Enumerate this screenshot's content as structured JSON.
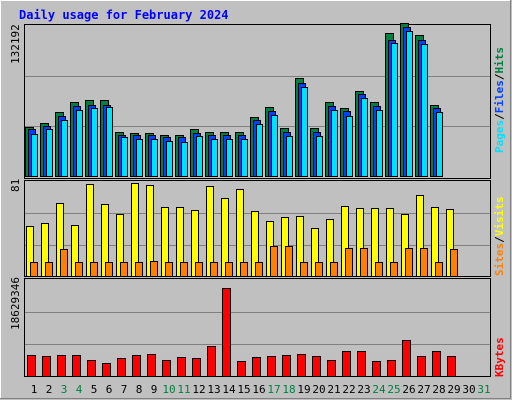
{
  "chart_data": {
    "type": "bar",
    "title": "Daily usage for February 2024",
    "categories": [
      "1",
      "2",
      "3",
      "4",
      "5",
      "6",
      "7",
      "8",
      "9",
      "10",
      "11",
      "12",
      "13",
      "14",
      "15",
      "16",
      "17",
      "18",
      "19",
      "20",
      "21",
      "22",
      "23",
      "24",
      "25",
      "26",
      "27",
      "28",
      "29",
      "30",
      "31"
    ],
    "weekend_days": [
      "3",
      "4",
      "10",
      "11",
      "17",
      "18",
      "24",
      "25",
      "31"
    ],
    "panels": [
      {
        "name": "hits_files_pages",
        "axis_max_label": "132192",
        "ylim": [
          0,
          132192
        ],
        "series": [
          {
            "name": "Hits",
            "color": "#008040",
            "values": [
              43000,
              47000,
              56000,
              65000,
              67000,
              67000,
              39000,
              38000,
              38000,
              36000,
              36000,
              41000,
              39000,
              39000,
              39000,
              52000,
              61000,
              42000,
              86000,
              42000,
              65000,
              60000,
              75000,
              65000,
              126000,
              135000,
              124000,
              63000,
              null,
              null,
              null
            ]
          },
          {
            "name": "Files",
            "color": "#0040ff",
            "values": [
              41000,
              44000,
              53000,
              62000,
              63000,
              63000,
              36000,
              36000,
              36000,
              34000,
              34000,
              38000,
              36000,
              36000,
              36000,
              49000,
              57000,
              39000,
              82000,
              39000,
              62000,
              57000,
              72000,
              62000,
              120000,
              131000,
              120000,
              60000,
              null,
              null,
              null
            ]
          },
          {
            "name": "Pages",
            "color": "#00e0ff",
            "values": [
              37000,
              41000,
              49000,
              58000,
              60000,
              61000,
              34000,
              33000,
              33000,
              31000,
              30000,
              35000,
              33000,
              33000,
              33000,
              46000,
              54000,
              35000,
              78000,
              35000,
              58000,
              53000,
              69000,
              58000,
              117000,
              128000,
              116000,
              56000,
              null,
              null,
              null
            ]
          }
        ]
      },
      {
        "name": "visits_sites",
        "axis_max_label": "81",
        "ylim": [
          0,
          81
        ],
        "series": [
          {
            "name": "Visits",
            "color": "#ffff00",
            "values": [
              44,
              47,
              64,
              45,
              81,
              63,
              55,
              82,
              80,
              61,
              61,
              58,
              79,
              69,
              77,
              57,
              48,
              52,
              53,
              42,
              50,
              62,
              60,
              60,
              60,
              55,
              71,
              61,
              59,
              null,
              null
            ]
          },
          {
            "name": "Sites",
            "color": "#ff8000",
            "values": [
              12,
              12,
              24,
              12,
              12,
              12,
              12,
              12,
              13,
              12,
              12,
              12,
              12,
              12,
              12,
              12,
              26,
              26,
              12,
              12,
              12,
              25,
              25,
              12,
              12,
              25,
              25,
              12,
              24,
              null,
              null
            ]
          }
        ]
      },
      {
        "name": "kbytes",
        "axis_max_label": "18629346",
        "ylim": [
          0,
          18629346
        ],
        "series": [
          {
            "name": "KBytes",
            "color": "#ff0000",
            "values": [
              4200000,
              4000000,
              4200000,
              4200000,
              3100000,
              2600000,
              3500000,
              4200000,
              4400000,
              3200000,
              3800000,
              3500000,
              5900000,
              17400000,
              2900000,
              3800000,
              3900000,
              4200000,
              4400000,
              4000000,
              3100000,
              5000000,
              4900000,
              2900000,
              3100000,
              7200000,
              3900000,
              5000000,
              3900000,
              null,
              null
            ]
          }
        ]
      }
    ],
    "legend": {
      "top": [
        "Pages",
        "/",
        "Files",
        "/",
        "Hits"
      ],
      "middle": [
        "Sites",
        "/",
        "Visits"
      ],
      "bottom": [
        "KBytes"
      ],
      "placement": "right"
    }
  },
  "colors": {
    "background": "#c0c0c0",
    "plot_background": "#c0c0c0",
    "gridline": "#808080",
    "title": "#0000ff",
    "weekday_label": "#000000",
    "weekend_label": "#008040",
    "bar_outline": "#000000"
  }
}
